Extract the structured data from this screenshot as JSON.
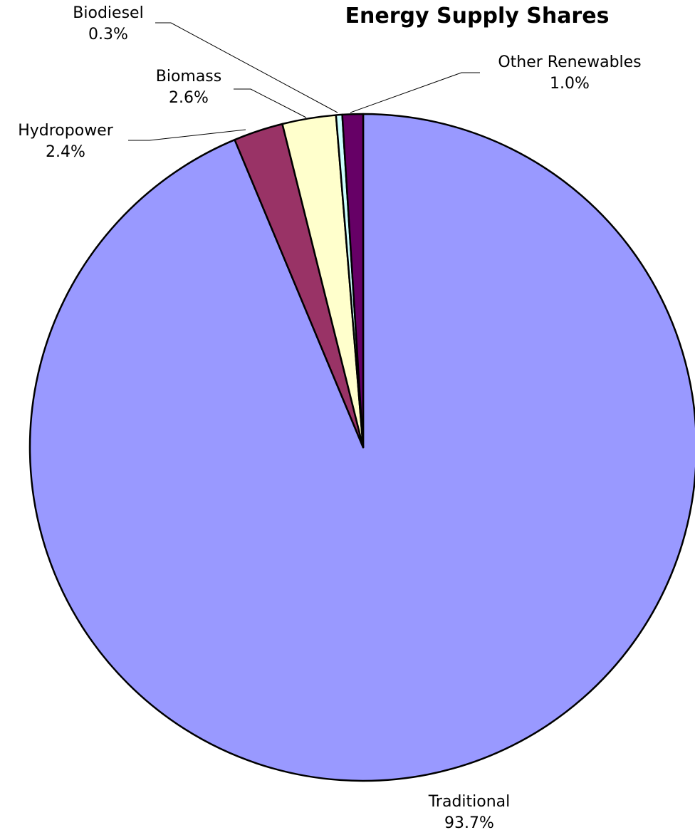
{
  "chart_data": {
    "type": "pie",
    "title": "Energy Supply Shares",
    "slices": [
      {
        "label": "Traditional",
        "value": 93.7,
        "value_label": "93.7%",
        "color": "#9999FF"
      },
      {
        "label": "Hydropower",
        "value": 2.4,
        "value_label": "2.4%",
        "color": "#993366"
      },
      {
        "label": "Biomass",
        "value": 2.6,
        "value_label": "2.6%",
        "color": "#FFFFCC"
      },
      {
        "label": "Biodiesel",
        "value": 0.3,
        "value_label": "0.3%",
        "color": "#CCFFFF"
      },
      {
        "label": "Other Renewables",
        "value": 1.0,
        "value_label": "1.0%",
        "color": "#660066"
      }
    ],
    "start_angle": "12 o'clock",
    "direction": "clockwise",
    "legend": "none"
  }
}
